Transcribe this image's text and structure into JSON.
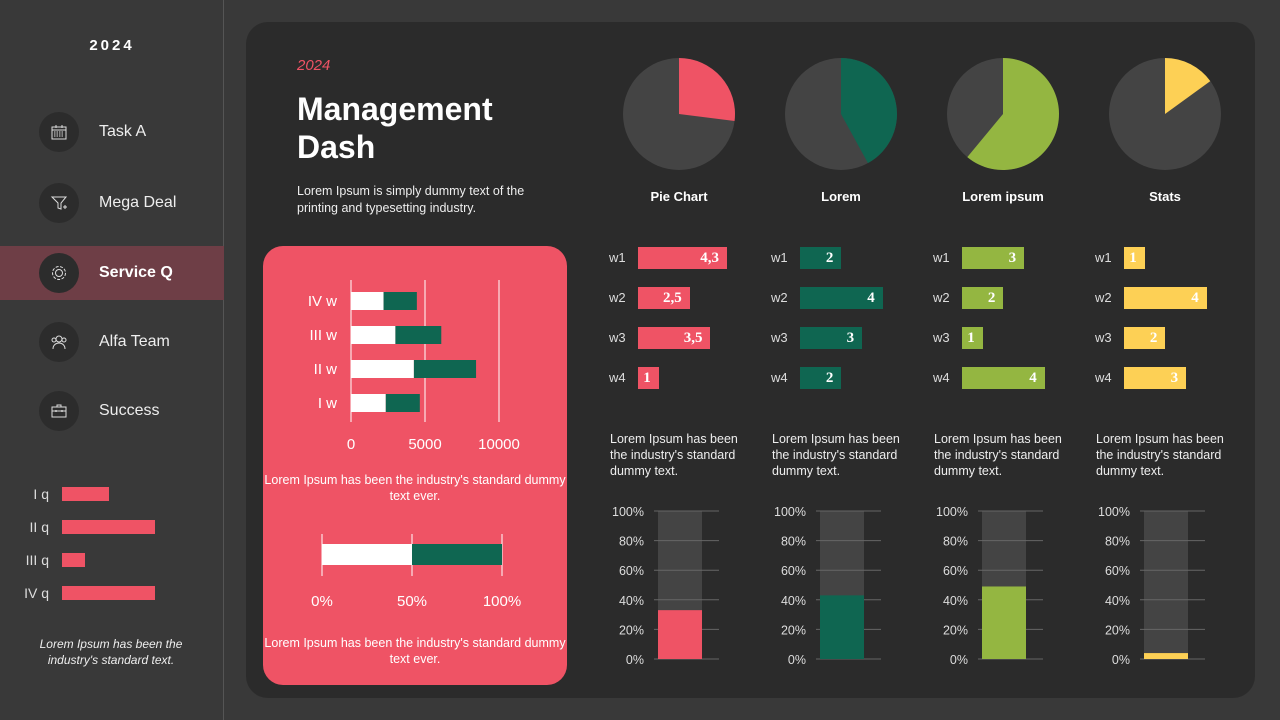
{
  "sidebar": {
    "year": "2024",
    "items": [
      {
        "label": "Task A",
        "icon": "calendar-icon"
      },
      {
        "label": "Mega Deal",
        "icon": "funnel-icon"
      },
      {
        "label": "Service Q",
        "icon": "gear-icon",
        "active": true
      },
      {
        "label": "Alfa Team",
        "icon": "team-icon"
      },
      {
        "label": "Success",
        "icon": "briefcase-icon"
      }
    ],
    "quarters": [
      {
        "label": "I q",
        "value": 2
      },
      {
        "label": "II q",
        "value": 4
      },
      {
        "label": "III q",
        "value": 1
      },
      {
        "label": "IV q",
        "value": 4
      }
    ],
    "note": "Lorem Ipsum has been the industry's standard text."
  },
  "header": {
    "subtitle": "2024",
    "title_line1": "Management",
    "title_line2": "Dash",
    "description": "Lorem Ipsum is simply dummy text of the printing and typesetting industry."
  },
  "colors": {
    "pink": "#ef5365",
    "green": "#0f6651",
    "lime": "#94b641",
    "yellow": "#fdd055",
    "dark": "#444444"
  },
  "pink_card": {
    "text1": "Lorem Ipsum has been the industry's standard  dummy text ever.",
    "text2": "Lorem Ipsum has been the industry's standard  dummy text ever."
  },
  "chart_data": [
    {
      "type": "bar",
      "orientation": "horizontal",
      "stacked": true,
      "categories": [
        "I w",
        "II w",
        "III w",
        "IV w"
      ],
      "series": [
        {
          "values": [
            2350,
            4250,
            3000,
            2200
          ],
          "color": "#ffffff"
        },
        {
          "values": [
            2300,
            4200,
            3100,
            2250
          ],
          "color": "#0f6651"
        }
      ],
      "xlim": [
        0,
        10000
      ],
      "xticks": [
        "0",
        "5000",
        "10000"
      ],
      "grid": true
    },
    {
      "type": "bar",
      "orientation": "horizontal",
      "stacked": true,
      "categories": [
        ""
      ],
      "series": [
        {
          "values": [
            50
          ],
          "color": "#ffffff"
        },
        {
          "values": [
            50
          ],
          "color": "#0f6651"
        }
      ],
      "xlim": [
        0,
        100
      ],
      "xticks": [
        "0%",
        "50%",
        "100%"
      ],
      "grid": true
    },
    {
      "type": "pie",
      "title": "Pie Chart",
      "values": [
        27,
        73
      ],
      "colors": [
        "#ef5365",
        "#444444"
      ]
    },
    {
      "type": "pie",
      "title": "Lorem",
      "values": [
        42,
        58
      ],
      "colors": [
        "#0f6651",
        "#444444"
      ]
    },
    {
      "type": "pie",
      "title": "Lorem ipsum",
      "values": [
        61,
        39
      ],
      "colors": [
        "#94b641",
        "#444444"
      ]
    },
    {
      "type": "pie",
      "title": "Stats",
      "values": [
        15,
        85
      ],
      "colors": [
        "#fdd055",
        "#444444"
      ]
    },
    {
      "type": "bar",
      "orientation": "horizontal",
      "categories": [
        "w1",
        "w2",
        "w3",
        "w4"
      ],
      "values": [
        4.3,
        2.5,
        3.5,
        1
      ],
      "labels": [
        "4,3",
        "2,5",
        "3,5",
        "1"
      ],
      "color": "#ef5365"
    },
    {
      "type": "bar",
      "orientation": "horizontal",
      "categories": [
        "w1",
        "w2",
        "w3",
        "w4"
      ],
      "values": [
        2,
        4,
        3,
        2
      ],
      "labels": [
        "2",
        "4",
        "3",
        "2"
      ],
      "color": "#0f6651"
    },
    {
      "type": "bar",
      "orientation": "horizontal",
      "categories": [
        "w1",
        "w2",
        "w3",
        "w4"
      ],
      "values": [
        3,
        2,
        1,
        4
      ],
      "labels": [
        "3",
        "2",
        "1",
        "4"
      ],
      "color": "#94b641"
    },
    {
      "type": "bar",
      "orientation": "horizontal",
      "categories": [
        "w1",
        "w2",
        "w3",
        "w4"
      ],
      "values": [
        1,
        4,
        2,
        3
      ],
      "labels": [
        "1",
        "4",
        "2",
        "3"
      ],
      "color": "#fdd055"
    },
    {
      "type": "bar",
      "values": [
        33
      ],
      "ylim": [
        0,
        100
      ],
      "yticks": [
        "0%",
        "20%",
        "40%",
        "60%",
        "80%",
        "100%"
      ],
      "color": "#ef5365",
      "description": "Lorem Ipsum has been the industry's standard dummy text."
    },
    {
      "type": "bar",
      "values": [
        43
      ],
      "ylim": [
        0,
        100
      ],
      "yticks": [
        "0%",
        "20%",
        "40%",
        "60%",
        "80%",
        "100%"
      ],
      "color": "#0f6651",
      "description": "Lorem Ipsum has been the industry's standard dummy text."
    },
    {
      "type": "bar",
      "values": [
        49
      ],
      "ylim": [
        0,
        100
      ],
      "yticks": [
        "0%",
        "20%",
        "40%",
        "60%",
        "80%",
        "100%"
      ],
      "color": "#94b641",
      "description": "Lorem Ipsum has been the industry's standard dummy text."
    },
    {
      "type": "bar",
      "values": [
        4
      ],
      "ylim": [
        0,
        100
      ],
      "yticks": [
        "0%",
        "20%",
        "40%",
        "60%",
        "80%",
        "100%"
      ],
      "color": "#fdd055",
      "description": "Lorem Ipsum has been the industry's standard dummy text."
    }
  ]
}
